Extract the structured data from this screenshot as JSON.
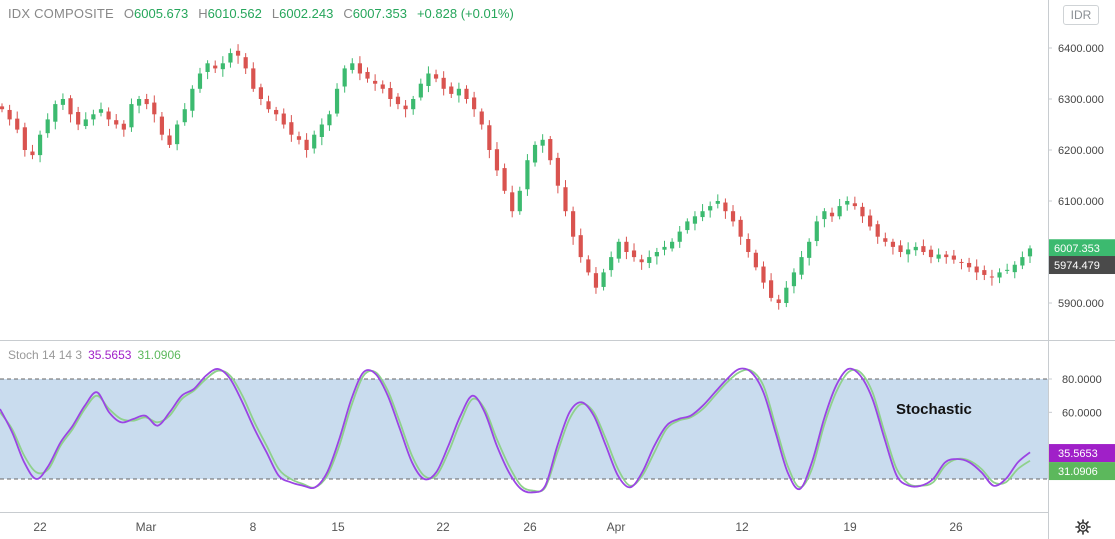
{
  "header": {
    "symbol": "IDX COMPOSITE",
    "open_label": "O",
    "open": "6005.673",
    "high_label": "H",
    "high": "6010.562",
    "low_label": "L",
    "low": "6002.243",
    "close_label": "C",
    "close": "6007.353",
    "change": "+0.828 (+0.01%)"
  },
  "currency_button": "IDR",
  "stoch_legend": {
    "name": "Stoch 14 14 3",
    "k": "35.5653",
    "d": "31.0906"
  },
  "overlay_label": "Stochastic",
  "icons": {
    "settings": "gear-icon"
  },
  "colors": {
    "up": "#3cba6f",
    "down": "#d9534f",
    "k_line": "#9b45e4",
    "d_line": "#8fd18c",
    "band": "#c9dcee",
    "last_price_tag": "#3cba6f",
    "prev_tag": "#4a4a4a",
    "k_tag": "#a020c8",
    "d_tag": "#5cb85c"
  },
  "chart_data": [
    {
      "type": "candlestick",
      "title": "",
      "ylim": [
        5870,
        6430
      ],
      "y_ticks": [
        "6400.000",
        "6300.000",
        "6200.000",
        "6100.000",
        "5900.000"
      ],
      "x_ticks": [
        "22",
        "Mar",
        "8",
        "15",
        "22",
        "26",
        "Apr",
        "12",
        "19",
        "26"
      ],
      "price_tags": {
        "last": "6007.353",
        "prev": "5974.479"
      },
      "series": [
        {
          "name": "IDX COMPOSITE",
          "close_path": [
            6280,
            6260,
            6240,
            6200,
            6190,
            6230,
            6260,
            6290,
            6300,
            6270,
            6250,
            6260,
            6270,
            6280,
            6260,
            6250,
            6240,
            6290,
            6300,
            6290,
            6270,
            6230,
            6210,
            6250,
            6280,
            6320,
            6350,
            6370,
            6360,
            6370,
            6390,
            6385,
            6360,
            6320,
            6300,
            6280,
            6270,
            6250,
            6230,
            6220,
            6200,
            6230,
            6250,
            6270,
            6320,
            6360,
            6370,
            6350,
            6340,
            6330,
            6320,
            6300,
            6290,
            6280,
            6300,
            6330,
            6350,
            6340,
            6320,
            6310,
            6320,
            6300,
            6280,
            6250,
            6200,
            6160,
            6120,
            6080,
            6120,
            6180,
            6210,
            6220,
            6180,
            6130,
            6080,
            6030,
            5990,
            5960,
            5930,
            5960,
            5990,
            6020,
            6000,
            5990,
            5980,
            5990,
            6000,
            6010,
            6020,
            6040,
            6060,
            6070,
            6080,
            6090,
            6100,
            6080,
            6060,
            6030,
            6000,
            5970,
            5940,
            5910,
            5900,
            5930,
            5960,
            5990,
            6020,
            6060,
            6080,
            6070,
            6090,
            6100,
            6090,
            6070,
            6050,
            6030,
            6020,
            6010,
            6000,
            6005,
            6010,
            6000,
            5990,
            5995,
            5990,
            5985,
            5980,
            5970,
            5960,
            5955,
            5950,
            5960,
            5965,
            5975,
            5990,
            6007
          ]
        }
      ]
    },
    {
      "type": "line",
      "title": "",
      "ylim": [
        10,
        90
      ],
      "y_ticks": [
        "80.0000",
        "60.0000"
      ],
      "band": [
        20,
        80
      ],
      "value_tags": [
        "35.5653",
        "31.0906"
      ],
      "series": [
        {
          "name": "%K",
          "values": [
            62,
            48,
            30,
            20,
            28,
            42,
            52,
            64,
            72,
            60,
            54,
            56,
            58,
            52,
            60,
            70,
            74,
            82,
            86,
            80,
            66,
            50,
            36,
            22,
            18,
            16,
            15,
            24,
            44,
            68,
            84,
            83,
            70,
            50,
            30,
            20,
            24,
            40,
            58,
            70,
            60,
            40,
            24,
            14,
            12,
            16,
            40,
            60,
            66,
            58,
            40,
            22,
            15,
            24,
            40,
            52,
            56,
            58,
            64,
            72,
            80,
            86,
            84,
            72,
            48,
            24,
            14,
            30,
            56,
            76,
            86,
            82,
            68,
            44,
            22,
            16,
            16,
            20,
            30,
            32,
            30,
            24,
            16,
            20,
            30,
            36
          ]
        },
        {
          "name": "%D",
          "values": [
            60,
            50,
            34,
            24,
            26,
            40,
            50,
            62,
            70,
            62,
            56,
            55,
            57,
            54,
            58,
            68,
            73,
            80,
            85,
            82,
            70,
            54,
            40,
            26,
            20,
            17,
            15,
            22,
            40,
            64,
            82,
            84,
            73,
            54,
            34,
            22,
            22,
            36,
            54,
            68,
            62,
            44,
            28,
            16,
            13,
            15,
            36,
            56,
            65,
            60,
            44,
            26,
            16,
            22,
            36,
            50,
            55,
            57,
            62,
            70,
            78,
            84,
            85,
            76,
            52,
            28,
            15,
            26,
            52,
            72,
            84,
            84,
            72,
            48,
            26,
            17,
            16,
            18,
            28,
            32,
            31,
            26,
            18,
            18,
            26,
            31
          ]
        }
      ]
    }
  ]
}
